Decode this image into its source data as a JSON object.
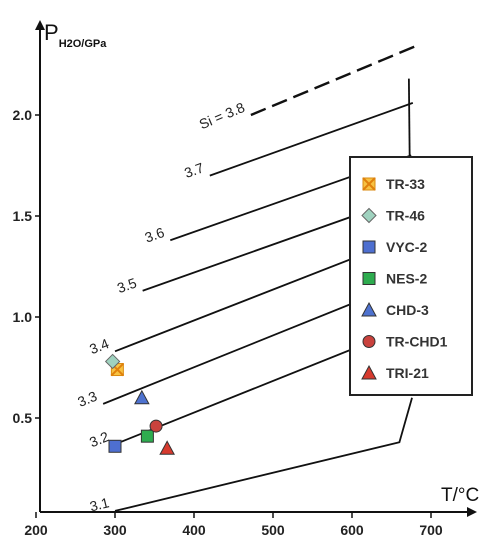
{
  "chart_data": {
    "type": "scatter",
    "x_axis": {
      "label_main": "T/",
      "label_unit": "°C",
      "range": [
        200,
        720
      ],
      "ticks": [
        200,
        300,
        400,
        500,
        600,
        700
      ],
      "tick_labels": [
        "200",
        "300",
        "400",
        "500",
        "600",
        "700"
      ]
    },
    "y_axis": {
      "label_main": "P",
      "label_sub": "H2O/GPa",
      "range": [
        0,
        2.4
      ],
      "ticks": [
        0.5,
        1.0,
        1.5,
        2.0
      ],
      "tick_labels": [
        "0.5",
        "1.0",
        "1.5",
        "2.0"
      ]
    },
    "isopleths": [
      {
        "label": "3.1",
        "points": [
          [
            300,
            0.04
          ],
          [
            660,
            0.38
          ],
          [
            676,
            0.6
          ]
        ],
        "dashed": false
      },
      {
        "label": "3.2",
        "points": [
          [
            300,
            0.37
          ],
          [
            670,
            0.95
          ]
        ],
        "dashed": false
      },
      {
        "label": "3.3",
        "points": [
          [
            285,
            0.57
          ],
          [
            672,
            1.18
          ]
        ],
        "dashed": false
      },
      {
        "label": "3.4",
        "points": [
          [
            300,
            0.83
          ],
          [
            673,
            1.4
          ]
        ],
        "dashed": false
      },
      {
        "label": "3.5",
        "points": [
          [
            335,
            1.13
          ],
          [
            674,
            1.6
          ]
        ],
        "dashed": false
      },
      {
        "label": "3.6",
        "points": [
          [
            370,
            1.38
          ],
          [
            675,
            1.8
          ]
        ],
        "dashed": false
      },
      {
        "label": "3.7",
        "points": [
          [
            420,
            1.7
          ],
          [
            677,
            2.06
          ]
        ],
        "dashed": false
      },
      {
        "label": "Si = 3.8",
        "points": [
          [
            472,
            2.0
          ],
          [
            680,
            2.34
          ]
        ],
        "dashed": true
      }
    ],
    "boundary": {
      "points": [
        [
          672,
          2.18
        ],
        [
          676,
          0.62
        ]
      ]
    },
    "series": [
      {
        "name": "TR-33",
        "marker": "x-square",
        "color": "#f2a11b",
        "points": [
          [
            303,
            0.74
          ]
        ]
      },
      {
        "name": "TR-46",
        "marker": "diamond",
        "color": "#9fd2bf",
        "points": [
          [
            297,
            0.78
          ]
        ]
      },
      {
        "name": "VYC-2",
        "marker": "square",
        "color": "#4e6fd0",
        "points": [
          [
            300,
            0.36
          ]
        ]
      },
      {
        "name": "NES-2",
        "marker": "square",
        "color": "#2eac4f",
        "points": [
          [
            341,
            0.41
          ]
        ]
      },
      {
        "name": "CHD-3",
        "marker": "triangle",
        "color": "#4e72cf",
        "points": [
          [
            334,
            0.6
          ]
        ]
      },
      {
        "name": "TR-CHD1",
        "marker": "circle",
        "color": "#c9423d",
        "points": [
          [
            352,
            0.46
          ]
        ]
      },
      {
        "name": "TRI-21",
        "marker": "triangle",
        "color": "#d63a2e",
        "points": [
          [
            366,
            0.35
          ]
        ]
      }
    ],
    "legend_position": "right"
  }
}
